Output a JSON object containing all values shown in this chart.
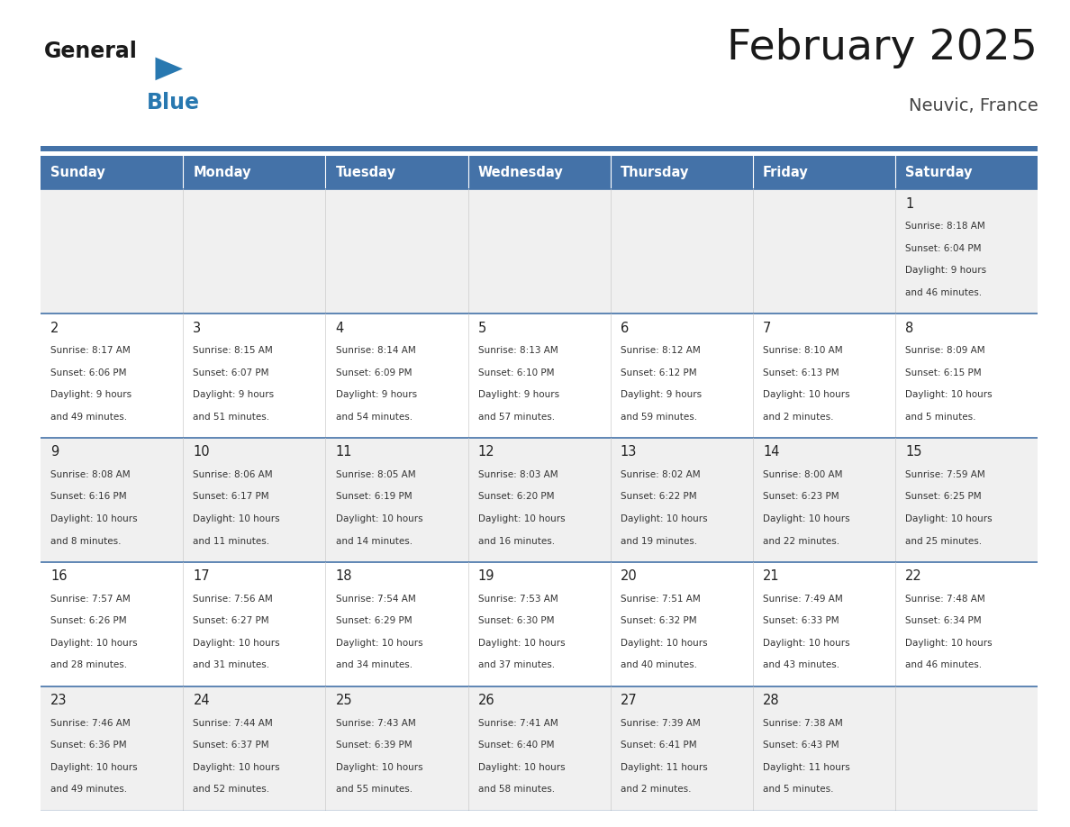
{
  "title": "February 2025",
  "subtitle": "Neuvic, France",
  "days_of_week": [
    "Sunday",
    "Monday",
    "Tuesday",
    "Wednesday",
    "Thursday",
    "Friday",
    "Saturday"
  ],
  "header_bg": "#4472a8",
  "header_text_color": "#ffffff",
  "cell_bg_odd": "#f0f0f0",
  "cell_bg_even": "#ffffff",
  "day_number_color": "#222222",
  "info_text_color": "#333333",
  "border_color": "#4472a8",
  "title_color": "#1a1a1a",
  "subtitle_color": "#444444",
  "logo_general_color": "#1a1a1a",
  "logo_blue_color": "#2878b0",
  "logo_triangle_color": "#2878b0",
  "calendar_data": [
    [
      null,
      null,
      null,
      null,
      null,
      null,
      {
        "day": 1,
        "sunrise": "8:18 AM",
        "sunset": "6:04 PM",
        "daylight_h": "9 hours",
        "daylight_m": "and 46 minutes."
      }
    ],
    [
      {
        "day": 2,
        "sunrise": "8:17 AM",
        "sunset": "6:06 PM",
        "daylight_h": "9 hours",
        "daylight_m": "and 49 minutes."
      },
      {
        "day": 3,
        "sunrise": "8:15 AM",
        "sunset": "6:07 PM",
        "daylight_h": "9 hours",
        "daylight_m": "and 51 minutes."
      },
      {
        "day": 4,
        "sunrise": "8:14 AM",
        "sunset": "6:09 PM",
        "daylight_h": "9 hours",
        "daylight_m": "and 54 minutes."
      },
      {
        "day": 5,
        "sunrise": "8:13 AM",
        "sunset": "6:10 PM",
        "daylight_h": "9 hours",
        "daylight_m": "and 57 minutes."
      },
      {
        "day": 6,
        "sunrise": "8:12 AM",
        "sunset": "6:12 PM",
        "daylight_h": "9 hours",
        "daylight_m": "and 59 minutes."
      },
      {
        "day": 7,
        "sunrise": "8:10 AM",
        "sunset": "6:13 PM",
        "daylight_h": "10 hours",
        "daylight_m": "and 2 minutes."
      },
      {
        "day": 8,
        "sunrise": "8:09 AM",
        "sunset": "6:15 PM",
        "daylight_h": "10 hours",
        "daylight_m": "and 5 minutes."
      }
    ],
    [
      {
        "day": 9,
        "sunrise": "8:08 AM",
        "sunset": "6:16 PM",
        "daylight_h": "10 hours",
        "daylight_m": "and 8 minutes."
      },
      {
        "day": 10,
        "sunrise": "8:06 AM",
        "sunset": "6:17 PM",
        "daylight_h": "10 hours",
        "daylight_m": "and 11 minutes."
      },
      {
        "day": 11,
        "sunrise": "8:05 AM",
        "sunset": "6:19 PM",
        "daylight_h": "10 hours",
        "daylight_m": "and 14 minutes."
      },
      {
        "day": 12,
        "sunrise": "8:03 AM",
        "sunset": "6:20 PM",
        "daylight_h": "10 hours",
        "daylight_m": "and 16 minutes."
      },
      {
        "day": 13,
        "sunrise": "8:02 AM",
        "sunset": "6:22 PM",
        "daylight_h": "10 hours",
        "daylight_m": "and 19 minutes."
      },
      {
        "day": 14,
        "sunrise": "8:00 AM",
        "sunset": "6:23 PM",
        "daylight_h": "10 hours",
        "daylight_m": "and 22 minutes."
      },
      {
        "day": 15,
        "sunrise": "7:59 AM",
        "sunset": "6:25 PM",
        "daylight_h": "10 hours",
        "daylight_m": "and 25 minutes."
      }
    ],
    [
      {
        "day": 16,
        "sunrise": "7:57 AM",
        "sunset": "6:26 PM",
        "daylight_h": "10 hours",
        "daylight_m": "and 28 minutes."
      },
      {
        "day": 17,
        "sunrise": "7:56 AM",
        "sunset": "6:27 PM",
        "daylight_h": "10 hours",
        "daylight_m": "and 31 minutes."
      },
      {
        "day": 18,
        "sunrise": "7:54 AM",
        "sunset": "6:29 PM",
        "daylight_h": "10 hours",
        "daylight_m": "and 34 minutes."
      },
      {
        "day": 19,
        "sunrise": "7:53 AM",
        "sunset": "6:30 PM",
        "daylight_h": "10 hours",
        "daylight_m": "and 37 minutes."
      },
      {
        "day": 20,
        "sunrise": "7:51 AM",
        "sunset": "6:32 PM",
        "daylight_h": "10 hours",
        "daylight_m": "and 40 minutes."
      },
      {
        "day": 21,
        "sunrise": "7:49 AM",
        "sunset": "6:33 PM",
        "daylight_h": "10 hours",
        "daylight_m": "and 43 minutes."
      },
      {
        "day": 22,
        "sunrise": "7:48 AM",
        "sunset": "6:34 PM",
        "daylight_h": "10 hours",
        "daylight_m": "and 46 minutes."
      }
    ],
    [
      {
        "day": 23,
        "sunrise": "7:46 AM",
        "sunset": "6:36 PM",
        "daylight_h": "10 hours",
        "daylight_m": "and 49 minutes."
      },
      {
        "day": 24,
        "sunrise": "7:44 AM",
        "sunset": "6:37 PM",
        "daylight_h": "10 hours",
        "daylight_m": "and 52 minutes."
      },
      {
        "day": 25,
        "sunrise": "7:43 AM",
        "sunset": "6:39 PM",
        "daylight_h": "10 hours",
        "daylight_m": "and 55 minutes."
      },
      {
        "day": 26,
        "sunrise": "7:41 AM",
        "sunset": "6:40 PM",
        "daylight_h": "10 hours",
        "daylight_m": "and 58 minutes."
      },
      {
        "day": 27,
        "sunrise": "7:39 AM",
        "sunset": "6:41 PM",
        "daylight_h": "11 hours",
        "daylight_m": "and 2 minutes."
      },
      {
        "day": 28,
        "sunrise": "7:38 AM",
        "sunset": "6:43 PM",
        "daylight_h": "11 hours",
        "daylight_m": "and 5 minutes."
      },
      null
    ]
  ]
}
